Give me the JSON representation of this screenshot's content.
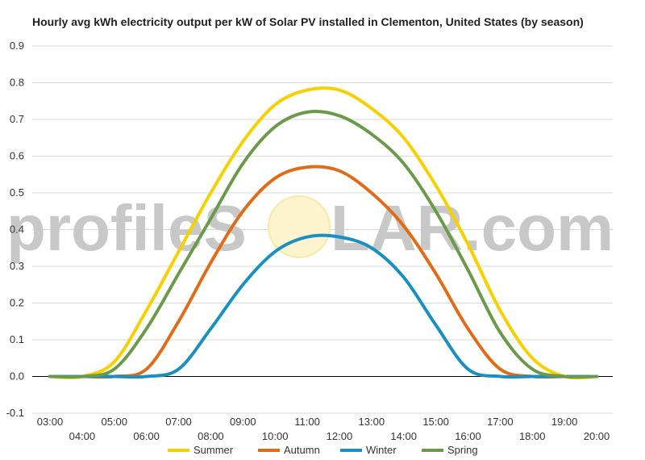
{
  "watermark": {
    "left": "profileS",
    "right": "LAR.com"
  },
  "colors": {
    "grid": "#d9d9d9",
    "axis": "#000000",
    "sun_fill": "#fdf3cc",
    "sun_stroke": "#f7e9a8",
    "watermark": "#c8c8c8"
  },
  "chart_data": {
    "type": "line",
    "title": "Hourly avg kWh electricity output per kW of Solar PV installed in Clementon, United States (by season)",
    "xlabel": "",
    "ylabel": "",
    "ylim": [
      -0.1,
      0.9
    ],
    "yticks": [
      "-0.1",
      "0.0",
      "0.1",
      "0.2",
      "0.3",
      "0.4",
      "0.5",
      "0.6",
      "0.7",
      "0.8",
      "0.9"
    ],
    "categories": [
      "03:00",
      "04:00",
      "05:00",
      "06:00",
      "07:00",
      "08:00",
      "09:00",
      "10:00",
      "11:00",
      "12:00",
      "13:00",
      "14:00",
      "15:00",
      "16:00",
      "17:00",
      "18:00",
      "19:00",
      "20:00"
    ],
    "grid": true,
    "legend_position": "bottom",
    "series": [
      {
        "name": "Summer",
        "color": "#f7d000",
        "values": [
          0.0,
          0.0,
          0.04,
          0.18,
          0.34,
          0.5,
          0.64,
          0.74,
          0.78,
          0.78,
          0.73,
          0.65,
          0.52,
          0.36,
          0.18,
          0.05,
          0.0,
          0.0
        ]
      },
      {
        "name": "Autumn",
        "color": "#e06c1a",
        "values": [
          0.0,
          0.0,
          0.0,
          0.02,
          0.15,
          0.31,
          0.45,
          0.54,
          0.57,
          0.56,
          0.5,
          0.41,
          0.28,
          0.13,
          0.02,
          0.0,
          0.0,
          0.0
        ]
      },
      {
        "name": "Winter",
        "color": "#1a8fc2",
        "values": [
          0.0,
          0.0,
          0.0,
          0.0,
          0.02,
          0.13,
          0.25,
          0.34,
          0.38,
          0.38,
          0.35,
          0.27,
          0.14,
          0.02,
          0.0,
          0.0,
          0.0,
          0.0
        ]
      },
      {
        "name": "Spring",
        "color": "#6b9a4a",
        "values": [
          0.0,
          0.0,
          0.02,
          0.13,
          0.28,
          0.43,
          0.58,
          0.68,
          0.72,
          0.71,
          0.66,
          0.58,
          0.45,
          0.29,
          0.12,
          0.02,
          0.0,
          0.0
        ]
      }
    ]
  }
}
